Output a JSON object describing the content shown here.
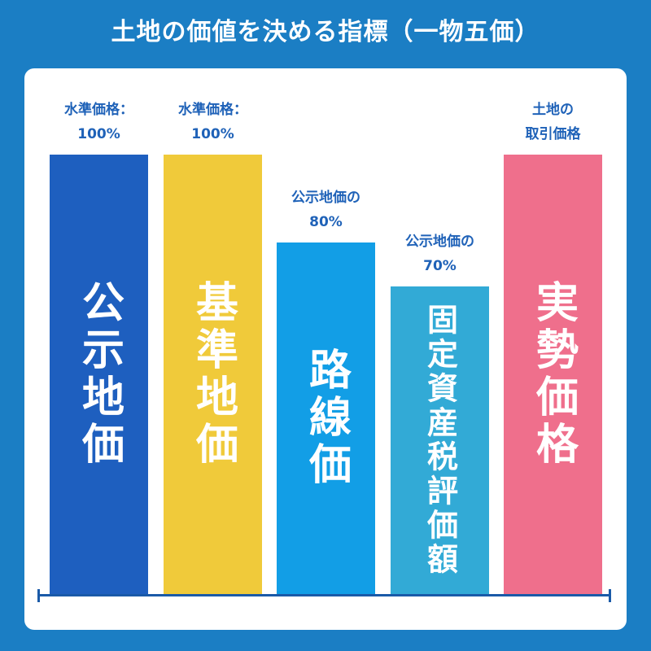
{
  "title": "土地の価値を決める指標（一物五価）",
  "chart_data": {
    "type": "bar",
    "title": "土地の価値を決める指標（一物五価）",
    "ylim": [
      0,
      100
    ],
    "categories": [
      "公示地価",
      "基準地価",
      "路線価",
      "固定資産税評価額",
      "実勢価格"
    ],
    "values": [
      100,
      100,
      80,
      70,
      100
    ],
    "annotations": [
      [
        "水準価格：",
        "100%"
      ],
      [
        "水準価格：",
        "100%"
      ],
      [
        "公示地価の",
        "80%"
      ],
      [
        "公示地価の",
        "70%"
      ],
      [
        "土地の",
        "取引価格"
      ]
    ],
    "colors": [
      "#1e5fbf",
      "#f0ca3a",
      "#129ee6",
      "#32aad6",
      "#ef6f8c"
    ]
  }
}
